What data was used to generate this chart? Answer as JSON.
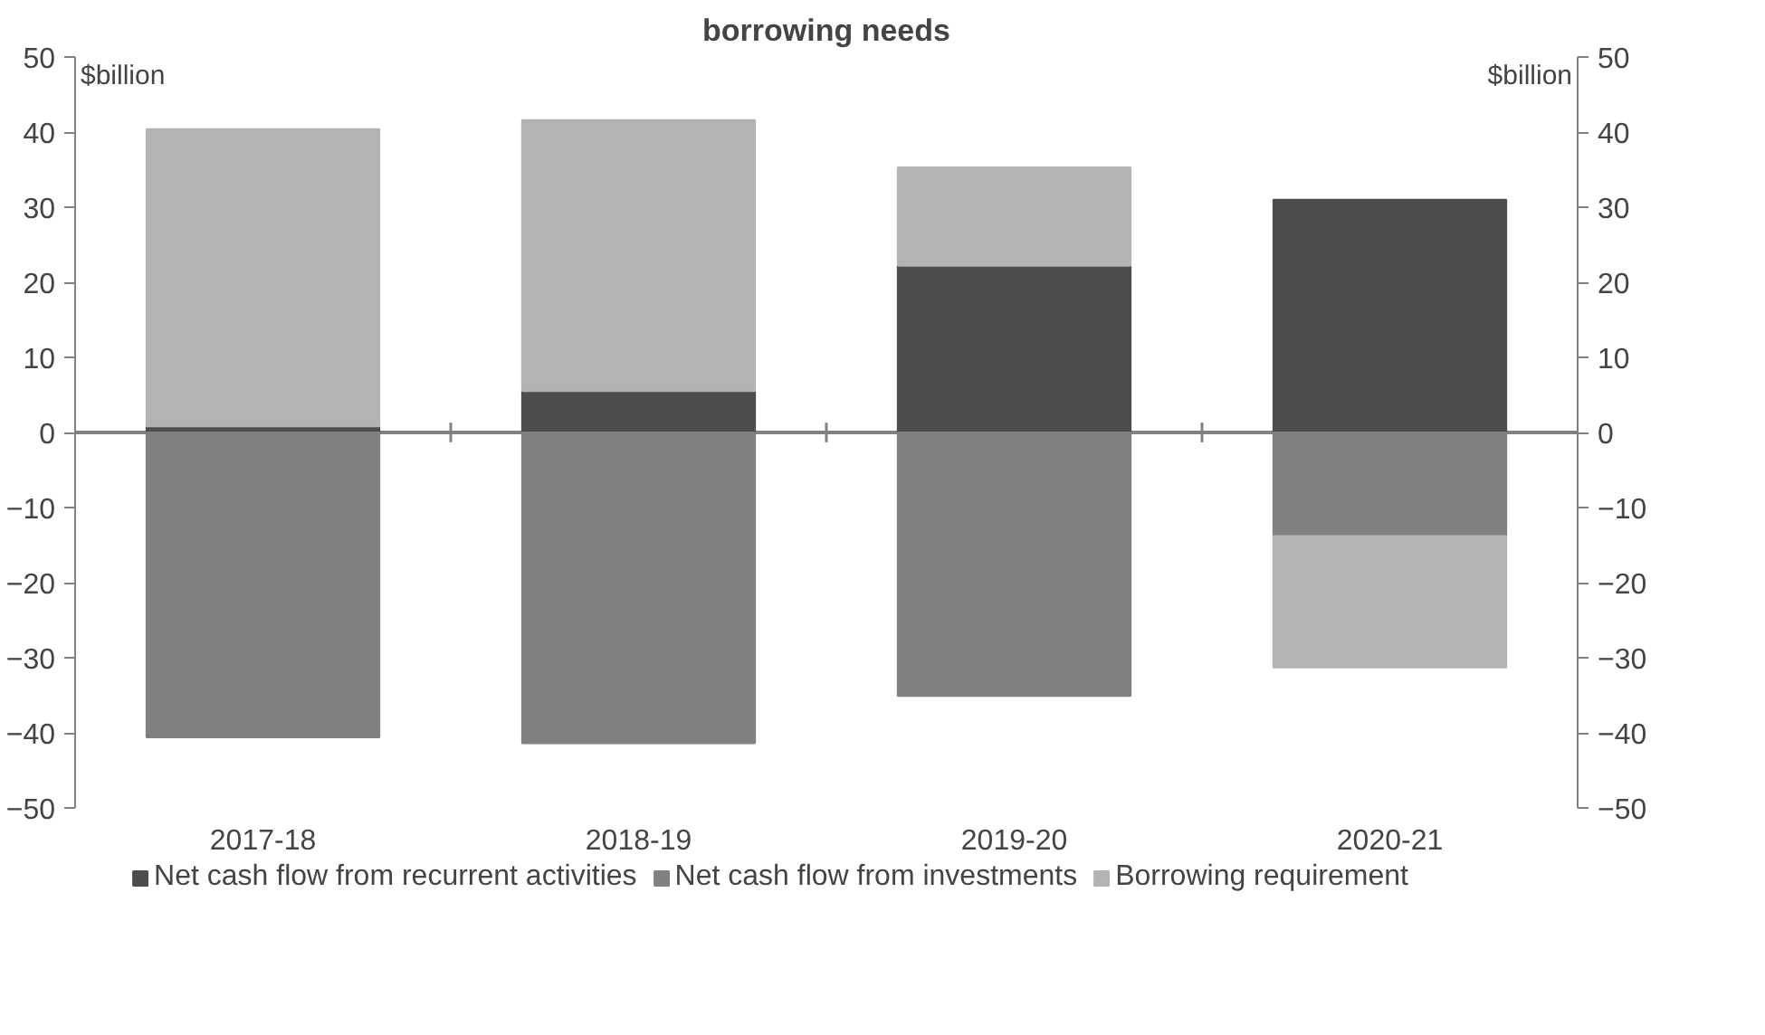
{
  "chart_data": {
    "type": "bar",
    "title": "borrowing needs",
    "ylabel": "$billion",
    "y2label": "$billion",
    "categories": [
      "2017-18",
      "2018-19",
      "2019-20",
      "2020-21"
    ],
    "stacked": true,
    "series": [
      {
        "name": "Net cash flow from recurrent activities",
        "color": "#4d4d4d",
        "values": [
          0.8,
          5.5,
          22.2,
          31.0
        ]
      },
      {
        "name": "Net cash flow from investments",
        "color": "#808080",
        "values": [
          -40.6,
          -41.4,
          -35.1,
          -13.8
        ]
      },
      {
        "name": "Borrowing requirement",
        "color": "#b3b3b3",
        "values": [
          39.6,
          36.1,
          13.1,
          -17.5
        ]
      }
    ],
    "ylim": [
      -50,
      50
    ],
    "yticks": [
      -50,
      -40,
      -30,
      -20,
      -10,
      0,
      10,
      20,
      30,
      40,
      50
    ],
    "y2lim": [
      -50,
      50
    ],
    "y2ticks": [
      -50,
      -40,
      -30,
      -20,
      -10,
      0,
      10,
      20,
      30,
      40,
      50
    ],
    "ref_lines": [
      {
        "axis": "y",
        "value": 0,
        "color": "#808080"
      }
    ],
    "grid": false,
    "legend": "bottom"
  }
}
